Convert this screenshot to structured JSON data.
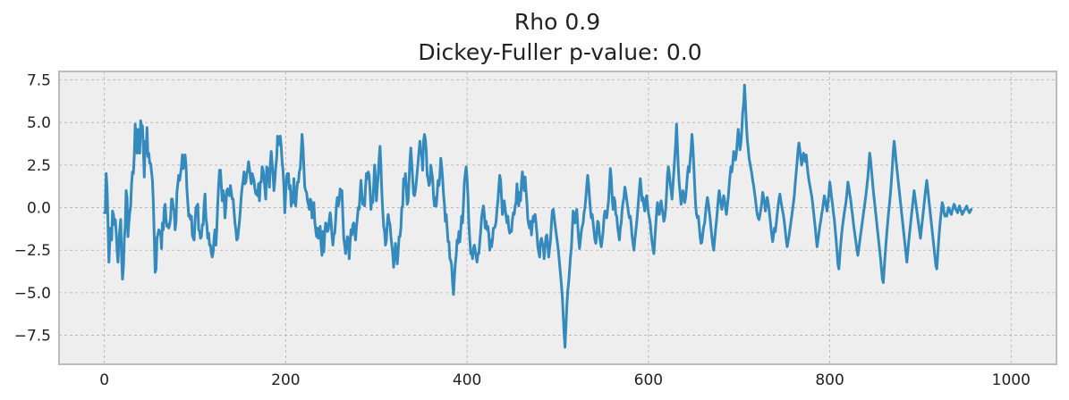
{
  "chart_data": {
    "type": "line",
    "title": "Rho 0.9",
    "subtitle": "Dickey-Fuller p-value: 0.0",
    "xlabel": "",
    "ylabel": "",
    "xlim": [
      -50,
      1050
    ],
    "ylim": [
      -9.2,
      8.0
    ],
    "grid": true,
    "grid_style": "dashed",
    "legend": "none",
    "x_ticks": [
      0,
      200,
      400,
      600,
      800,
      1000
    ],
    "x_tick_labels": [
      "0",
      "200",
      "400",
      "600",
      "800",
      "1000"
    ],
    "y_ticks": [
      7.5,
      5.0,
      2.5,
      0.0,
      -2.5,
      -5.0,
      -7.5
    ],
    "y_tick_labels": [
      "7.5",
      "5.0",
      "2.5",
      "0.0",
      "−2.5",
      "−5.0",
      "−7.5"
    ],
    "colors": {
      "line": "#348abd",
      "plot_bg": "#eeeeee",
      "frame": "#bcbcbc",
      "grid": "#b2b2b2"
    },
    "series": [
      {
        "x_start": 0,
        "x_step": 1,
        "values": [
          -0.3,
          -0.3,
          2.0,
          1.1,
          -0.9,
          -3.2,
          -2.0,
          -1.2,
          -1.9,
          -0.2,
          -0.4,
          -1.0,
          -0.7,
          -1.4,
          -2.5,
          -3.2,
          -2.0,
          -1.3,
          -0.7,
          -2.9,
          -4.2,
          -3.5,
          -1.8,
          -1.1,
          1.0,
          0.6,
          -1.7,
          -0.9,
          -0.3,
          0.1,
          1.4,
          2.1,
          2.0,
          3.1,
          4.9,
          3.9,
          3.2,
          4.6,
          4.3,
          3.2,
          5.1,
          4.8,
          4.8,
          3.5,
          1.8,
          3.9,
          3.2,
          4.7,
          3.0,
          3.2,
          2.6,
          2.6,
          2.1,
          1.6,
          0.3,
          -1.7,
          -3.8,
          -3.6,
          -1.8,
          -1.6,
          -1.3,
          -1.5,
          -1.4,
          -2.4,
          -0.9,
          -1.3,
          -0.1,
          0.2,
          -0.7,
          -1.1,
          -1.0,
          -1.2,
          -1.0,
          -0.6,
          0.5,
          0.5,
          0.0,
          -0.2,
          -1.3,
          -0.8,
          0.9,
          1.4,
          1.9,
          1.6,
          2.0,
          2.4,
          3.1,
          2.3,
          2.8,
          3.1,
          2.5,
          1.1,
          0.3,
          -0.5,
          -0.4,
          -0.7,
          -0.5,
          -1.6,
          -1.8,
          -1.9,
          -0.8,
          0.0,
          0.1,
          0.2,
          -1.3,
          -1.4,
          -1.8,
          -1.7,
          -1.0,
          -1.0,
          0.2,
          0.8,
          -0.6,
          -1.0,
          -1.8,
          -1.5,
          -2.2,
          -2.2,
          -2.7,
          -2.9,
          -2.6,
          -1.8,
          -1.3,
          -2.2,
          -1.2,
          0.2,
          1.3,
          2.2,
          2.2,
          1.3,
          0.4,
          1.0,
          0.6,
          -0.6,
          0.1,
          1.0,
          1.1,
          0.9,
          0.7,
          1.3,
          0.9,
          0.5,
          0.5,
          -0.2,
          -0.9,
          -1.3,
          -1.9,
          -1.8,
          -1.3,
          -0.8,
          -0.1,
          0.7,
          1.2,
          1.6,
          2.1,
          1.4,
          1.5,
          2.0,
          2.2,
          2.7,
          2.3,
          1.8,
          1.4,
          2.0,
          1.8,
          1.6,
          1.1,
          0.8,
          1.0,
          0.7,
          1.4,
          0.4,
          1.5,
          1.5,
          2.4,
          2.2,
          1.8,
          1.1,
          0.5,
          2.4,
          2.3,
          1.9,
          1.2,
          2.6,
          3.3,
          2.6,
          1.9,
          1.0,
          1.6,
          2.4,
          2.9,
          4.2,
          3.8,
          3.7,
          4.2,
          3.6,
          2.7,
          2.2,
          1.2,
          -0.3,
          0.9,
          1.8,
          2.0,
          2.0,
          1.1,
          1.3,
          0.1,
          0.9,
          0.3,
          1.7,
          0.4,
          0.1,
          0.9,
          1.5,
          1.5,
          2.1,
          2.3,
          3.2,
          4.3,
          3.6,
          2.4,
          1.2,
          1.0,
          0.9,
          0.4,
          0.2,
          -0.1,
          0.5,
          0.4,
          -0.6,
          -0.3,
          0.3,
          -0.8,
          -1.3,
          -1.7,
          -1.2,
          -1.8,
          -1.6,
          -1.1,
          -2.2,
          -2.8,
          -1.4,
          -2.6,
          -1.5,
          -0.9,
          -1.0,
          -1.4,
          -1.3,
          -0.7,
          -0.3,
          -0.8,
          -1.6,
          -2.2,
          -1.6,
          -1.5,
          -0.8,
          0.2,
          0.6,
          0.1,
          0.4,
          1.1,
          0.7,
          1.0,
          -0.5,
          -1.8,
          -2.2,
          -2.7,
          -2.2,
          -1.7,
          -1.9,
          -3.0,
          -2.0,
          -1.3,
          -1.6,
          -1.0,
          -0.9,
          -1.4,
          -1.9,
          -1.1,
          -0.6,
          0.0,
          -0.1,
          0.8,
          1.6,
          0.8,
          0.2,
          0.4,
          0.1,
          1.2,
          2.0,
          1.7,
          2.1,
          1.9,
          1.0,
          -0.1,
          0.6,
          0.3,
          1.3,
          2.5,
          1.7,
          0.4,
          1.2,
          1.9,
          2.9,
          3.6,
          2.4,
          0.9,
          -0.2,
          -1.1,
          -1.4,
          -2.2,
          -1.9,
          -0.9,
          -0.4,
          -0.8,
          -1.0,
          -1.7,
          -2.2,
          -2.7,
          -3.5,
          -2.8,
          -2.1,
          -2.8,
          -3.3,
          -2.6,
          -1.7,
          -1.7,
          -1.2,
          0.0,
          0.1,
          1.7,
          1.4,
          2.0,
          1.1,
          0.2,
          0.4,
          1.6,
          2.8,
          3.5,
          2.6,
          1.7,
          0.8,
          0.7,
          1.0,
          1.5,
          2.1,
          2.7,
          3.3,
          3.9,
          3.2,
          3.1,
          2.2,
          3.9,
          4.3,
          4.0,
          3.3,
          1.9,
          1.7,
          1.3,
          1.5,
          2.5,
          2.1,
          1.7,
          0.7,
          0.1,
          0.6,
          0.1,
          0.8,
          1.6,
          1.3,
          1.9,
          2.9,
          2.4,
          1.7,
          0.8,
          0.2,
          -0.8,
          -0.4,
          -1.2,
          -2.0,
          -2.0,
          -3.0,
          -3.1,
          -3.4,
          -4.4,
          -5.1,
          -4.1,
          -3.3,
          -2.8,
          -1.9,
          -2.1,
          -1.4,
          -2.0,
          -1.3,
          -0.5,
          -0.9,
          0.2,
          1.5,
          2.0,
          2.4,
          1.7,
          0.6,
          -1.0,
          -1.9,
          -2.7,
          -2.6,
          -3.0,
          -2.4,
          -2.2,
          -2.5,
          -2.9,
          -3.2,
          -2.7,
          -2.7,
          -2.0,
          -1.4,
          -0.6,
          -0.2,
          0.1,
          -0.4,
          -1.2,
          -0.8,
          -1.3,
          -1.1,
          -1.6,
          -2.5,
          -1.9,
          -2.3,
          -1.9,
          -1.2,
          -1.2,
          -1.1,
          -0.8,
          -0.1,
          0.4,
          1.2,
          1.9,
          1.6,
          0.6,
          -0.4,
          -0.1,
          0.4,
          -0.1,
          -0.5,
          -0.9,
          -0.5,
          -1.2,
          -1.5,
          -1.3,
          -1.4,
          -0.7,
          -0.3,
          -0.4,
          0.1,
          0.3,
          1.4,
          0.5,
          0.1,
          0.9,
          0.4,
          1.5,
          2.1,
          1.4,
          1.0,
          1.8,
          1.0,
          0.3,
          -0.7,
          -1.0,
          -1.2,
          -0.8,
          -1.6,
          -0.9,
          -0.5,
          -0.8,
          -0.4,
          -0.9,
          -1.5,
          -2.3,
          -2.6,
          -2.9,
          -2.0,
          -1.8,
          -2.1,
          -2.3,
          -3.0,
          -2.3,
          -1.7,
          -1.6,
          -2.2,
          -2.9,
          -2.4,
          -1.9,
          -1.0,
          -0.2,
          -0.1,
          -0.5,
          -1.0,
          -1.4,
          -1.8,
          -2.2,
          -2.7,
          -3.3,
          -3.9,
          -4.5,
          -5.2,
          -6.3,
          -7.4,
          -8.2,
          -7.0,
          -5.8,
          -4.9,
          -4.4,
          -3.7,
          -2.9,
          -2.4,
          -1.3,
          -0.2,
          -0.5,
          -0.9,
          -0.4,
          -0.1,
          -1.0,
          -1.8,
          -2.4,
          -1.9,
          -1.4,
          -1.1,
          -0.9,
          -0.3,
          0.0,
          0.6,
          1.3,
          1.9,
          1.4,
          0.6,
          -0.1,
          -0.6,
          -0.4,
          -0.9,
          -1.4,
          -1.9,
          -2.1,
          -1.5,
          -0.8,
          -0.9,
          -1.6,
          -2.0,
          -2.3,
          -1.9,
          -1.4,
          -0.6,
          -0.2,
          -0.5,
          -0.6,
          -0.1,
          0.4,
          1.3,
          2.3,
          1.7,
          0.6,
          -0.1,
          0.6,
          0.4,
          -0.4,
          -0.5,
          -1.1,
          -1.5,
          -1.9,
          -1.2,
          -0.9,
          -0.1,
          0.3,
          0.6,
          1.2,
          0.9,
          0.5,
          0.1,
          -0.3,
          -0.6,
          -0.5,
          -1.0,
          -1.7,
          -2.1,
          -2.5,
          -1.9,
          -1.4,
          -0.9,
          -0.3,
          0.4,
          1.1,
          1.7,
          1.1,
          0.4,
          0.6,
          0.1,
          -0.2,
          0.4,
          0.7,
          0.2,
          -0.3,
          -0.6,
          -0.9,
          -1.5,
          -2.0,
          -2.4,
          -2.7,
          -1.9,
          -1.1,
          -0.3,
          0.3,
          -0.2,
          -0.4,
          0.1,
          0.4,
          0.0,
          -0.4,
          -0.8,
          -0.6,
          -0.1,
          0.8,
          1.9,
          2.4,
          2.0,
          1.4,
          1.0,
          0.5,
          1.3,
          2.1,
          2.9,
          3.7,
          4.9,
          3.6,
          2.3,
          1.4,
          0.8,
          0.2,
          0.5,
          1.0,
          0.7,
          0.3,
          0.6,
          1.2,
          1.9,
          2.4,
          2.1,
          2.8,
          3.4,
          4.3,
          3.6,
          2.5,
          1.3,
          0.2,
          -0.4,
          -0.6,
          -0.5,
          -1.1,
          -1.7,
          -2.1,
          -2.0,
          -1.5,
          -1.1,
          -0.9,
          -0.3,
          0.2,
          0.6,
          0.3,
          -0.2,
          -0.6,
          -1.2,
          -1.7,
          -2.2,
          -2.5,
          -1.9,
          -1.3,
          -0.8,
          -0.2,
          0.5,
          1.0,
          0.6,
          0.2,
          -0.1,
          0.3,
          0.7,
          0.4,
          0.0,
          -0.4,
          0.1,
          0.6,
          1.3,
          1.9,
          2.4,
          2.1,
          2.6,
          3.3,
          3.1,
          2.8,
          3.2,
          3.9,
          4.6,
          4.1,
          3.4,
          3.8,
          4.6,
          5.6,
          6.1,
          7.2,
          6.1,
          4.9,
          4.0,
          3.5,
          2.9,
          2.6,
          2.3,
          2.0,
          1.6,
          1.3,
          0.9,
          0.5,
          0.0,
          -0.4,
          -0.6,
          -0.7,
          -0.4,
          -0.1,
          0.3,
          0.9,
          0.6,
          0.3,
          -0.2,
          0.2,
          0.6,
          0.3,
          -0.1,
          -0.6,
          -1.1,
          -1.6,
          -2.0,
          -1.6,
          -1.2,
          -1.4,
          -0.9,
          -0.4,
          0.1,
          0.5,
          0.8,
          0.4,
          0.1,
          -0.2,
          -0.5,
          -0.9,
          -1.4,
          -1.9,
          -2.3,
          -2.0,
          -1.7,
          -1.3,
          -0.9,
          -0.5,
          -0.1,
          0.3,
          0.8,
          1.5,
          2.1,
          2.7,
          3.4,
          3.8,
          3.4,
          2.9,
          2.5,
          2.9,
          3.2,
          3.0,
          2.7,
          3.1,
          2.5,
          2.0,
          1.6,
          1.3,
          1.0,
          0.7,
          0.3,
          -0.2,
          -0.7,
          -1.2,
          -1.8,
          -2.3,
          -1.9,
          -1.5,
          -1.1,
          -0.8,
          -0.4,
          -0.1,
          0.3,
          0.7,
          0.4,
          0.1,
          -0.2,
          0.3,
          0.8,
          1.5,
          1.1,
          0.6,
          0.2,
          -0.3,
          -0.7,
          -1.3,
          -1.9,
          -2.6,
          -3.3,
          -3.6,
          -2.9,
          -2.2,
          -1.6,
          -1.1,
          -0.7,
          -0.3,
          0.0,
          0.4,
          0.9,
          1.5,
          1.2,
          0.8,
          0.5,
          0.0,
          -0.4,
          -0.9,
          -1.3,
          -1.7,
          -2.1,
          -2.5,
          -2.8,
          -2.4,
          -2.0,
          -1.6,
          -1.2,
          -0.8,
          -0.4,
          0.0,
          0.4,
          0.8,
          1.3,
          1.8,
          2.5,
          3.2,
          2.8,
          2.2,
          1.6,
          1.0,
          0.5,
          0.0,
          -0.5,
          -1.0,
          -1.5,
          -2.0,
          -2.5,
          -3.0,
          -3.6,
          -4.2,
          -4.4,
          -3.6,
          -2.8,
          -2.1,
          -1.4,
          -0.8,
          -0.2,
          0.3,
          0.9,
          1.6,
          2.4,
          3.3,
          3.9,
          3.4,
          2.8,
          2.3,
          1.8,
          1.3,
          0.8,
          0.3,
          -0.2,
          -0.7,
          -1.2,
          -1.7,
          -2.2,
          -2.7,
          -3.2,
          -2.6,
          -2.0,
          -1.5,
          -1.0,
          -0.5,
          0.0,
          0.5,
          1.0,
          0.6,
          0.2,
          -0.2,
          -0.6,
          -1.0,
          -1.4,
          -1.8,
          -1.3,
          -0.8,
          -0.3,
          0.2,
          0.7,
          1.2,
          1.6,
          1.1,
          0.6,
          0.1,
          -0.4,
          -0.9,
          -1.4,
          -1.9,
          -2.4,
          -2.9,
          -3.4,
          -3.6,
          -2.8,
          -2.0,
          -1.3,
          -0.7,
          -0.2,
          0.3,
          0.1,
          -0.3,
          -0.5,
          -0.4,
          -0.5,
          -0.2,
          0.0,
          -0.1,
          -0.3,
          -0.4,
          -0.2,
          0.0,
          0.2,
          0.1,
          -0.1,
          -0.2,
          -0.3,
          -0.1,
          0.1,
          -0.1,
          -0.2,
          -0.4,
          -0.3,
          -0.2,
          -0.1,
          0.0,
          0.1,
          -0.1,
          -0.2,
          -0.3,
          -0.2,
          -0.1
        ]
      }
    ]
  }
}
